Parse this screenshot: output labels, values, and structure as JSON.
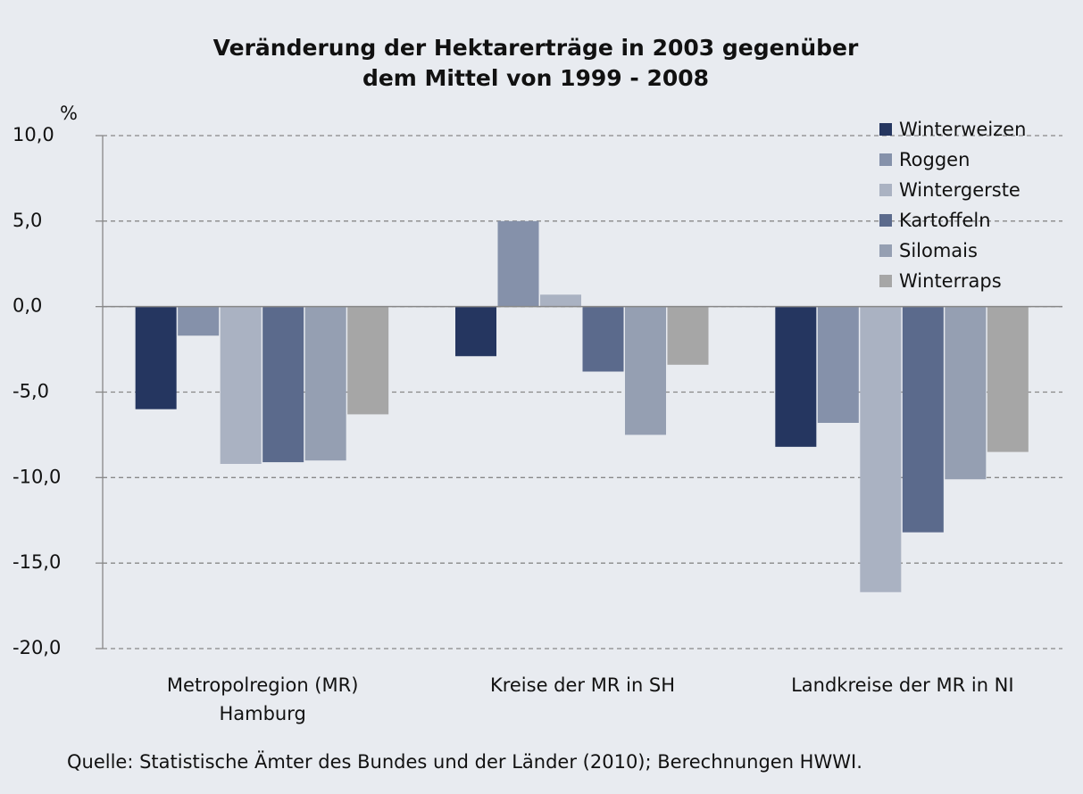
{
  "chart_data": {
    "type": "bar",
    "title": [
      "Veränderung der Hektarerträge in 2003 gegenüber",
      "dem Mittel von 1999 - 2008"
    ],
    "ylabel": "%",
    "categories": [
      "Metropolregion (MR) Hamburg",
      "Kreise der MR in SH",
      "Landkreise der MR in NI"
    ],
    "series": [
      {
        "name": "Winterweizen",
        "color": "#253660",
        "values": [
          -6.0,
          -2.9,
          -8.2
        ]
      },
      {
        "name": "Roggen",
        "color": "#8591aa",
        "values": [
          -1.7,
          5.0,
          -6.8
        ]
      },
      {
        "name": "Wintergerste",
        "color": "#aab2c2",
        "values": [
          -9.2,
          0.7,
          -16.7
        ]
      },
      {
        "name": "Kartoffeln",
        "color": "#5b6a8c",
        "values": [
          -9.1,
          -3.8,
          -13.2
        ]
      },
      {
        "name": "Silomais",
        "color": "#959fb2",
        "values": [
          -9.0,
          -7.5,
          -10.1
        ]
      },
      {
        "name": "Winterraps",
        "color": "#a6a6a6",
        "values": [
          -6.3,
          -3.4,
          -8.5
        ]
      }
    ],
    "ylim": [
      -20,
      10
    ],
    "yticks": [
      {
        "value": 10,
        "label": "10,0"
      },
      {
        "value": 5,
        "label": "5,0"
      },
      {
        "value": 0,
        "label": "0,0"
      },
      {
        "value": -5,
        "label": "-5,0"
      },
      {
        "value": -10,
        "label": "-10,0"
      },
      {
        "value": -15,
        "label": "-15,0"
      },
      {
        "value": -20,
        "label": "-20,0"
      }
    ],
    "grid": true,
    "legend": "upper right",
    "source": "Quelle: Statistische Ämter des Bundes und der Länder (2010); Berechnungen HWWI."
  }
}
